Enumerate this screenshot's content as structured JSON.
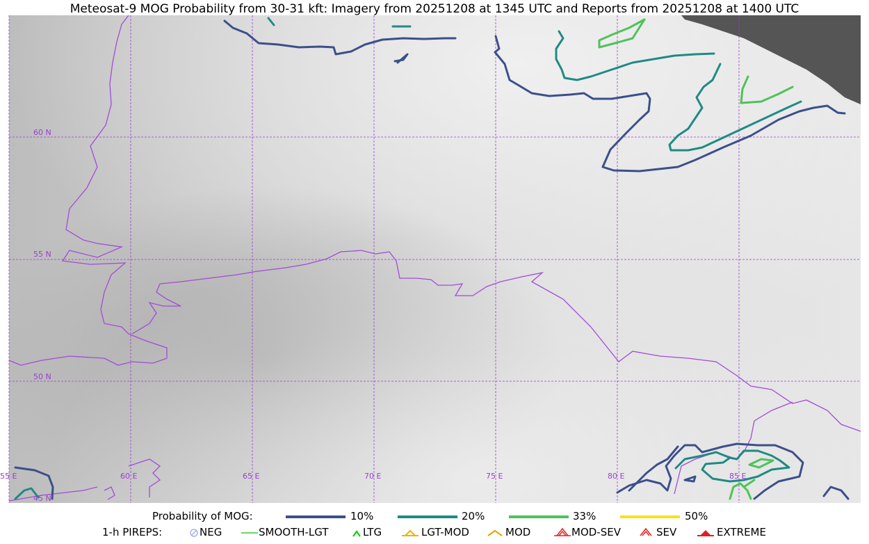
{
  "title": "Meteosat-9 MOG Probability from 30-31 kft: Imagery from 20251208 at 1345 UTC and Reports from 20251208 at 1400 UTC",
  "lat_labels": [
    "60 N",
    "55 N",
    "50 N",
    "45 N"
  ],
  "lon_labels": [
    "55 E",
    "60 E",
    "65 E",
    "70 E",
    "75 E",
    "80 E",
    "85 E"
  ],
  "legend": {
    "probability_label": "Probability of MOG:",
    "levels": [
      {
        "label": "10%",
        "color": "#3b4f8a"
      },
      {
        "label": "20%",
        "color": "#1f8a84"
      },
      {
        "label": "33%",
        "color": "#4fc25a"
      },
      {
        "label": "50%",
        "color": "#f7e21c"
      }
    ],
    "pireps_label": "1-h PIREPS:",
    "pireps": [
      {
        "label": "NEG",
        "icon": "neg-icon",
        "color": "#a8b0f0"
      },
      {
        "label": "SMOOTH-LGT",
        "icon": "line-icon",
        "color": "#33cc33"
      },
      {
        "label": "LTG",
        "icon": "caret-icon",
        "color": "#00cc00"
      },
      {
        "label": "LGT-MOD",
        "icon": "caret-bar-icon",
        "color": "#e8b400"
      },
      {
        "label": "MOD",
        "icon": "caret-icon",
        "color": "#e8a000"
      },
      {
        "label": "MOD-SEV",
        "icon": "double-caret-bar-icon",
        "color": "#e02020"
      },
      {
        "label": "SEV",
        "icon": "double-caret-icon",
        "color": "#e02020"
      },
      {
        "label": "EXTREME",
        "icon": "filled-triangle-icon",
        "color": "#e02020"
      }
    ]
  },
  "colors": {
    "grid": "#9a3fcf",
    "borders": "#a04cd8",
    "no_data": "#555555"
  }
}
